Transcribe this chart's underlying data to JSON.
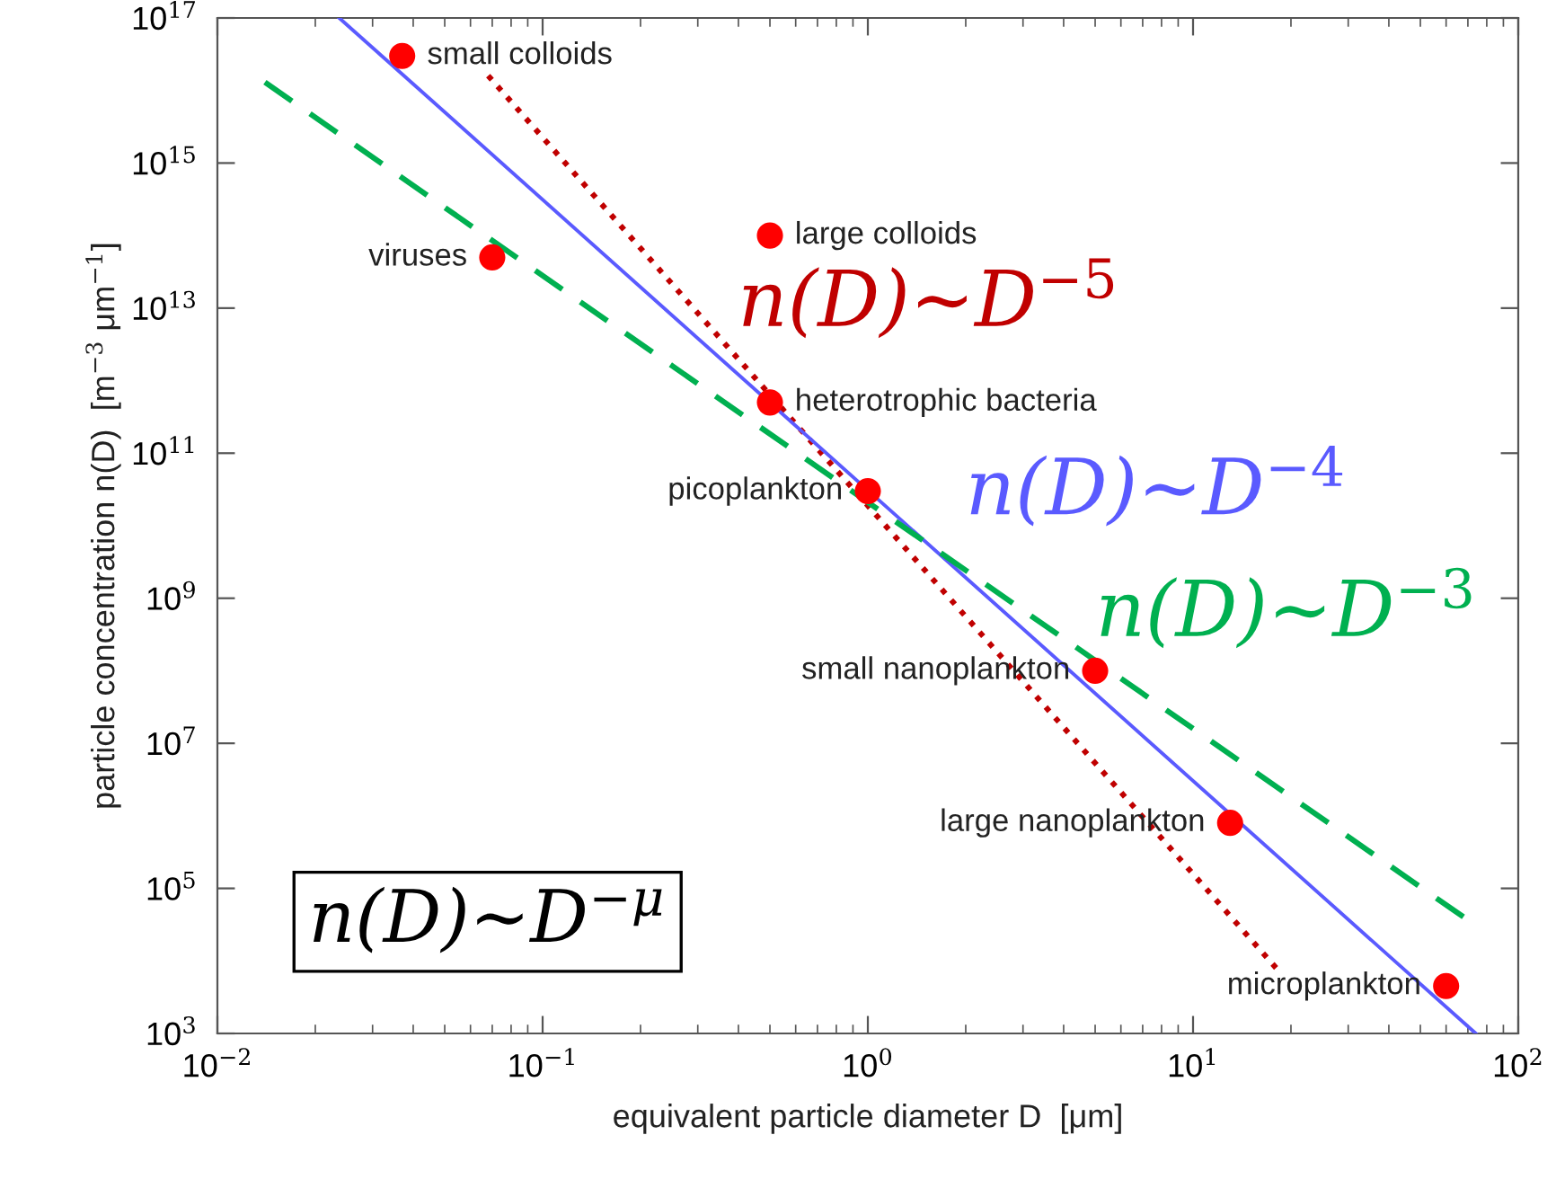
{
  "chart_data": {
    "type": "scatter",
    "xlabel": "equivalent particle diameter D  [μm]",
    "ylabel": "particle concentration n(D)  [m$^{−3}$ μm$^{−1}$]",
    "log": "xy",
    "grid": false,
    "legend": false,
    "xlim": [
      0.01,
      100
    ],
    "ylim": [
      1000,
      1e+17
    ],
    "xticks": [
      {
        "value": 0.01,
        "label": "10$^{−2}$"
      },
      {
        "value": 0.1,
        "label": "10$^{−1}$"
      },
      {
        "value": 1,
        "label": "10$^{0}$"
      },
      {
        "value": 10,
        "label": "10$^{1}$"
      },
      {
        "value": 100,
        "label": "10$^{2}$"
      }
    ],
    "yticks": [
      {
        "value": 1000,
        "label": "10$^{3}$"
      },
      {
        "value": 100000,
        "label": "10$^{5}$"
      },
      {
        "value": 10000000.0,
        "label": "10$^{7}$"
      },
      {
        "value": 1000000000.0,
        "label": "10$^{9}$"
      },
      {
        "value": 100000000000.0,
        "label": "10$^{11}$"
      },
      {
        "value": 10000000000000.0,
        "label": "10$^{13}$"
      },
      {
        "value": 1000000000000000.0,
        "label": "10$^{15}$"
      },
      {
        "value": 1e+17,
        "label": "10$^{17}$"
      }
    ],
    "series": [
      {
        "color": "#ff0000",
        "marker": "circle",
        "x": [
          0.037,
          0.07,
          0.5,
          0.5,
          1,
          5,
          13,
          60
        ],
        "values": [
          3e+16,
          50000000000000.0,
          100000000000000.0,
          500000000000.0,
          30000000000.0,
          100000000.0,
          800000.0,
          4500
        ]
      },
      {
        "type": "line",
        "name": "n(D)~D$^{−5}$",
        "color": "#c00000",
        "line_style": "dotted",
        "marker": "none",
        "x": [
          0.068,
          18
        ],
        "values": [
          1.6e+16,
          8000
        ]
      },
      {
        "type": "line",
        "name": "n(D)~D$^{−4}$",
        "color": "#5a5aff",
        "line_style": "solid",
        "marker": "none",
        "x": [
          0.0237,
          74
        ],
        "values": [
          1e+17,
          1000
        ]
      },
      {
        "type": "line",
        "name": "n(D)~D$^{−3}$",
        "color": "#00b050",
        "line_style": "dashed",
        "marker": "none",
        "x": [
          0.014,
          71
        ],
        "values": [
          1.3e+16,
          35000
        ]
      }
    ],
    "annotations": [
      {
        "text": "small colloids",
        "x": 0.037,
        "y": 3e+16
      },
      {
        "text": "viruses",
        "x": 0.07,
        "y": 50000000000000.0
      },
      {
        "text": "large colloids",
        "x": 0.5,
        "y": 100000000000000.0
      },
      {
        "text": "heterotrophic bacteria",
        "x": 0.5,
        "y": 500000000000.0
      },
      {
        "text": "picoplankton",
        "x": 1,
        "y": 30000000000.0
      },
      {
        "text": "small nanoplankton",
        "x": 5,
        "y": 100000000.0
      },
      {
        "text": "large nanoplankton",
        "x": 13,
        "y": 800000.0
      },
      {
        "text": "microplankton",
        "x": 60,
        "y": 4500
      },
      "n(D)~D$^{−μ}$"
    ]
  }
}
